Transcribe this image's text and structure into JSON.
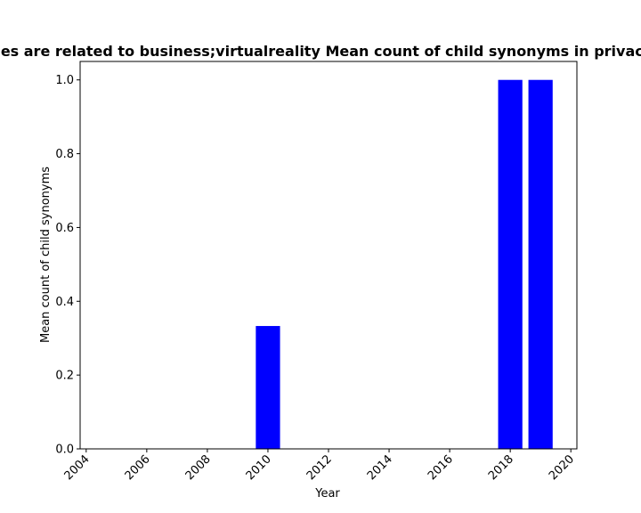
{
  "chart_data": {
    "type": "bar",
    "title": "es are related to business;virtualreality Mean count of child synonyms in privacy",
    "xlabel": "Year",
    "ylabel": "Mean count of child synonyms",
    "x": [
      2010,
      2018,
      2019
    ],
    "values": [
      0.333,
      1.0,
      1.0
    ],
    "xlim": [
      2003.8,
      2020.2
    ],
    "ylim": [
      0.0,
      1.05
    ],
    "x_ticks": [
      "2004",
      "2006",
      "2008",
      "2010",
      "2012",
      "2014",
      "2016",
      "2018",
      "2020"
    ],
    "y_ticks": [
      "0.0",
      "0.2",
      "0.4",
      "0.6",
      "0.8",
      "1.0"
    ],
    "bar_color": "#0000ff",
    "grid": false,
    "legend": "none"
  }
}
